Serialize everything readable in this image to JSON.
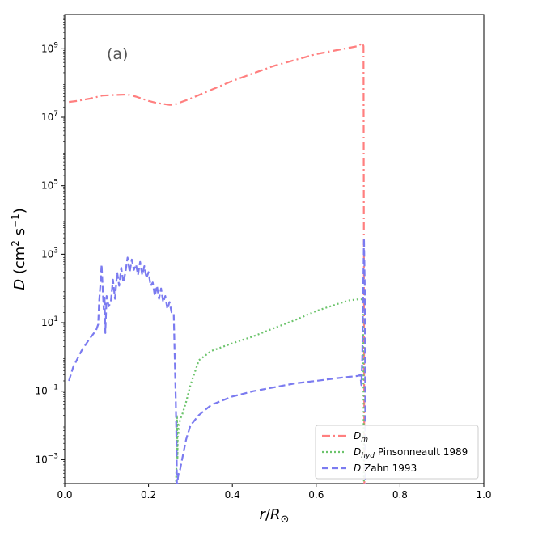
{
  "chart_data": {
    "type": "line",
    "panel_label": "(a)",
    "xlabel": "r/R⊙",
    "ylabel": "D (cm² s⁻¹)",
    "xlim": [
      0.0,
      1.0
    ],
    "ylim": [
      0.0002,
      10000000000
    ],
    "y_scale": "log",
    "grid": false,
    "legend_position": "bottom-right",
    "x_ticks": [
      "0.0",
      "0.2",
      "0.4",
      "0.6",
      "0.8",
      "1.0"
    ],
    "x_tick_values": [
      0.0,
      0.2,
      0.4,
      0.6,
      0.8,
      1.0
    ],
    "y_ticks": [
      {
        "value": 0.001,
        "base": "10",
        "exp": "−3"
      },
      {
        "value": 0.1,
        "base": "10",
        "exp": "−1"
      },
      {
        "value": 10,
        "base": "10",
        "exp": "1"
      },
      {
        "value": 1000,
        "base": "10",
        "exp": "3"
      },
      {
        "value": 100000,
        "base": "10",
        "exp": "5"
      },
      {
        "value": 10000000,
        "base": "10",
        "exp": "7"
      },
      {
        "value": 1000000000,
        "base": "10",
        "exp": "9"
      }
    ],
    "series": [
      {
        "name": "D_m",
        "legend_main": "D",
        "legend_sub": "m",
        "legend_suffix": "",
        "color": "#ff7f7f",
        "style": "dashdot",
        "x": [
          0.01,
          0.03,
          0.06,
          0.09,
          0.12,
          0.15,
          0.17,
          0.2,
          0.22,
          0.25,
          0.26,
          0.3,
          0.4,
          0.5,
          0.6,
          0.7,
          0.71,
          0.713,
          0.715,
          0.716
        ],
        "y": [
          28000000.0,
          30000000.0,
          35000000.0,
          43000000.0,
          45000000.0,
          46000000.0,
          40000000.0,
          30000000.0,
          26000000.0,
          23000000.0,
          23000000.0,
          35000000.0,
          115000000.0,
          320000000.0,
          700000000.0,
          1200000000.0,
          1450000000.0,
          1200000000.0,
          0.0001,
          0.0001
        ]
      },
      {
        "name": "D_hyd Pinsonneault 1989",
        "legend_main": "D",
        "legend_sub": "hyd",
        "legend_suffix": " Pinsonneault 1989",
        "color": "#6cc46c",
        "style": "dotted",
        "x": [
          0.265,
          0.267,
          0.268,
          0.269,
          0.27,
          0.272,
          0.275,
          0.28,
          0.29,
          0.3,
          0.32,
          0.35,
          0.4,
          0.45,
          0.5,
          0.55,
          0.6,
          0.65,
          0.68,
          0.7,
          0.71,
          0.712,
          0.713,
          0.714
        ],
        "y": [
          0.0001,
          0.001,
          0.02,
          0.001,
          0.012,
          0.006,
          0.015,
          0.02,
          0.05,
          0.15,
          0.8,
          1.5,
          2.5,
          4.0,
          7.0,
          12.0,
          22.0,
          35.0,
          45.0,
          48.0,
          48.0,
          20.0,
          0.1,
          0.0001
        ]
      },
      {
        "name": "D Zahn 1993",
        "legend_main": "D",
        "legend_sub": "",
        "legend_suffix": " Zahn 1993",
        "color": "#7b7bf0",
        "style": "dashed",
        "x": [
          0.01,
          0.02,
          0.04,
          0.06,
          0.075,
          0.08,
          0.082,
          0.085,
          0.088,
          0.09,
          0.093,
          0.095,
          0.097,
          0.1,
          0.105,
          0.11,
          0.115,
          0.12,
          0.125,
          0.13,
          0.135,
          0.14,
          0.145,
          0.15,
          0.155,
          0.16,
          0.165,
          0.17,
          0.175,
          0.18,
          0.185,
          0.19,
          0.195,
          0.2,
          0.205,
          0.21,
          0.215,
          0.22,
          0.225,
          0.23,
          0.235,
          0.24,
          0.245,
          0.25,
          0.255,
          0.26,
          0.262,
          0.265,
          0.267,
          0.268,
          0.27,
          0.272,
          0.275,
          0.28,
          0.29,
          0.3,
          0.32,
          0.35,
          0.4,
          0.45,
          0.5,
          0.55,
          0.6,
          0.65,
          0.7,
          0.705,
          0.708,
          0.71,
          0.712,
          0.714,
          0.716,
          0.718
        ],
        "y": [
          0.2,
          0.5,
          1.5,
          3.5,
          6.0,
          9.0,
          40.0,
          120.0,
          500.0,
          150.0,
          25.0,
          60.0,
          5.0,
          60.0,
          30.0,
          40.0,
          180.0,
          50.0,
          300.0,
          120.0,
          400.0,
          150.0,
          300.0,
          800.0,
          300.0,
          700.0,
          350.0,
          500.0,
          250.0,
          600.0,
          250.0,
          450.0,
          200.0,
          300.0,
          120.0,
          150.0,
          60.0,
          120.0,
          50.0,
          100.0,
          40.0,
          60.0,
          25.0,
          40.0,
          20.0,
          20.0,
          2.0,
          0.05,
          0.002,
          0.0001,
          0.0003,
          0.0004,
          0.0005,
          0.001,
          0.004,
          0.01,
          0.02,
          0.04,
          0.07,
          0.1,
          0.13,
          0.17,
          0.2,
          0.24,
          0.28,
          0.3,
          0.15,
          1.0,
          50.0,
          3000.0,
          100.0,
          0.0001
        ]
      }
    ]
  }
}
